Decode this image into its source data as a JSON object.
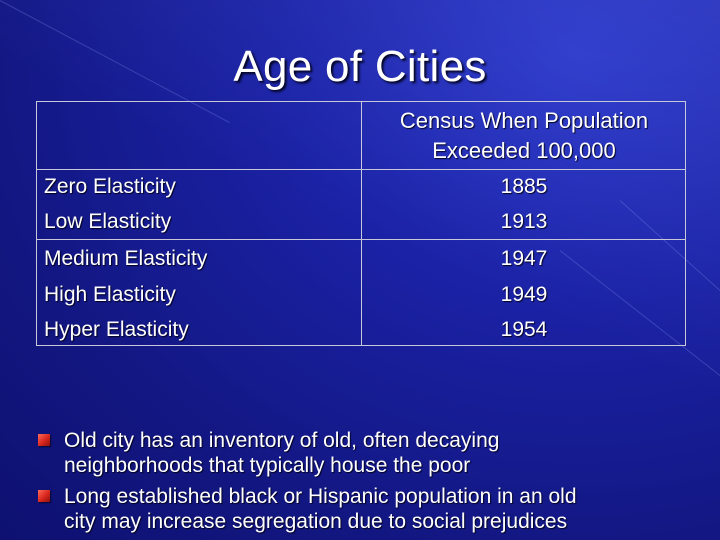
{
  "slide": {
    "title": "Age of Cities"
  },
  "table": {
    "header": [
      "",
      "Census When Population",
      "Exceeded 100,000"
    ],
    "rows": [
      {
        "label": "Zero Elasticity",
        "value": "1885"
      },
      {
        "label": "Low Elasticity",
        "value": "1913"
      },
      {
        "label": "Medium Elasticity",
        "value": "1947"
      },
      {
        "label": "High Elasticity",
        "value": "1949"
      },
      {
        "label": "Hyper Elasticity",
        "value": "1954"
      }
    ]
  },
  "bullets": [
    {
      "line1": "Old city has an inventory of old, often decaying",
      "line2": "neighborhoods that typically house the poor"
    },
    {
      "line1": "Long established black or Hispanic population in an old",
      "line2": "city may increase segregation due to social prejudices"
    }
  ],
  "colors": {
    "background": "#151a8c",
    "bullet": "#d8261c",
    "text": "#ffffff"
  }
}
